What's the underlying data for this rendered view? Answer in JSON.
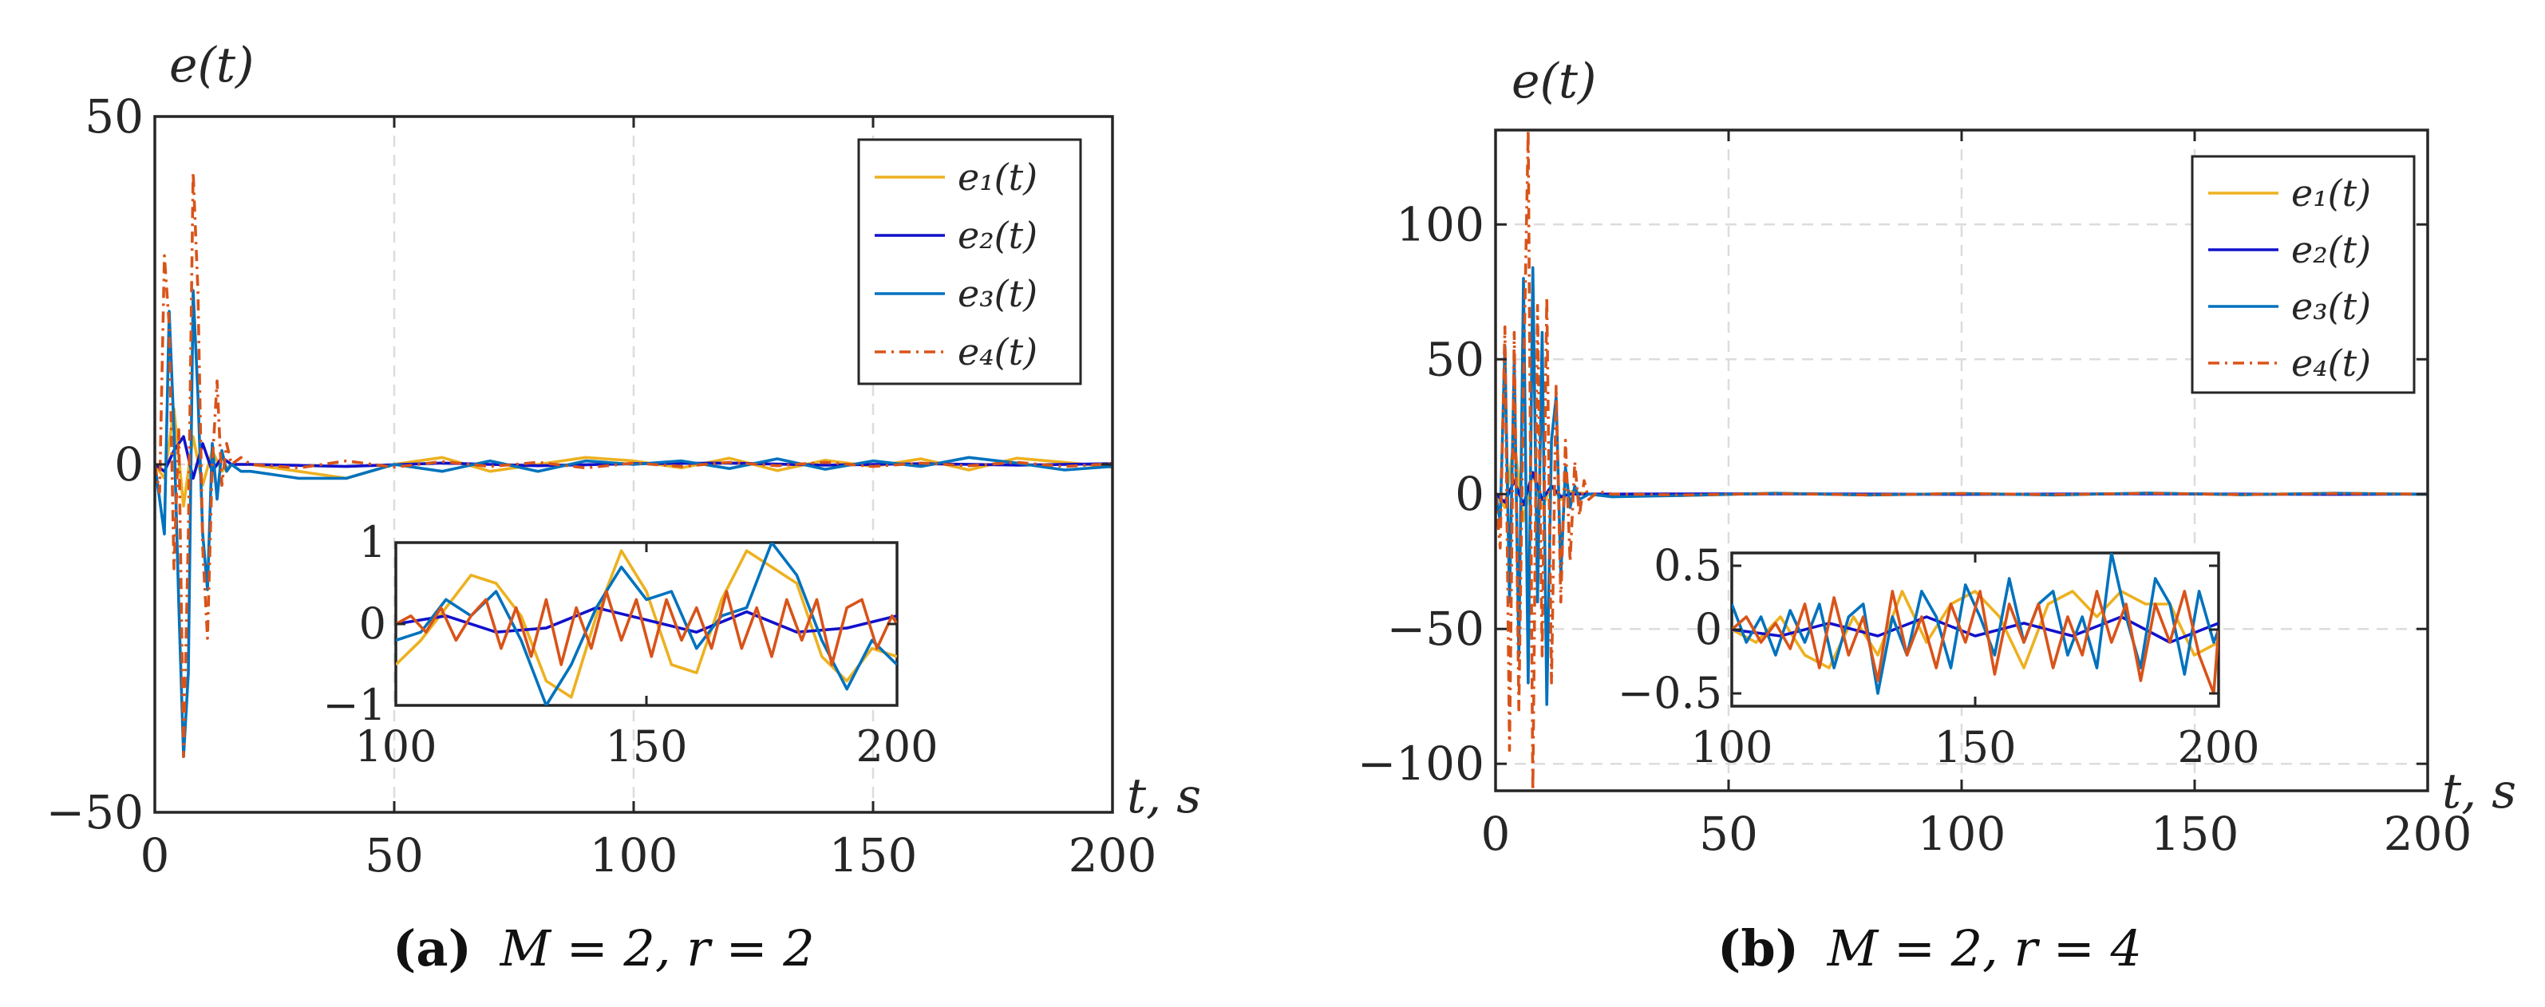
{
  "figure": {
    "panels": [
      {
        "label": "(a)",
        "caption_math": "M = 2, r = 2"
      },
      {
        "label": "(b)",
        "caption_math": "M = 2, r = 4"
      }
    ]
  },
  "colors": {
    "e1": "#EDB120",
    "e2": "#1111CC",
    "e3": "#0072BD",
    "e4": "#D95319"
  },
  "chart_data": [
    {
      "type": "line",
      "title": "",
      "ylabel": "e(t)",
      "xlabel": "t, s",
      "xlim": [
        0,
        200
      ],
      "ylim": [
        -50,
        50
      ],
      "xticks": [
        0,
        50,
        100,
        150,
        200
      ],
      "yticks": [
        -50,
        0,
        50
      ],
      "xtick_labels": [
        "0",
        "50",
        "100",
        "150",
        "200"
      ],
      "ytick_labels": [
        "−50",
        "0",
        "50"
      ],
      "grid": true,
      "legend_position": "top-right",
      "series": [
        {
          "name": "e1(t)",
          "legend": "e₁(t)",
          "style": "solid",
          "x": [
            0,
            2,
            4,
            6,
            8,
            10,
            12,
            14,
            16,
            20,
            30,
            40,
            50,
            60,
            70,
            80,
            90,
            100,
            110,
            120,
            130,
            140,
            150,
            160,
            170,
            180,
            190,
            200
          ],
          "values": [
            0,
            -2,
            8,
            -6,
            4,
            -3,
            2,
            -1,
            0,
            0,
            -1,
            -2,
            0,
            1,
            -1,
            0,
            1,
            0.5,
            -0.5,
            0.9,
            -0.9,
            0.6,
            -0.3,
            0.8,
            -0.8,
            0.9,
            0.3,
            -0.4
          ]
        },
        {
          "name": "e2(t)",
          "legend": "e₂(t)",
          "style": "solid",
          "x": [
            0,
            2,
            4,
            6,
            8,
            10,
            12,
            14,
            16,
            20,
            40,
            60,
            80,
            100,
            120,
            140,
            160,
            180,
            200
          ],
          "values": [
            0,
            -1,
            2,
            4,
            -2,
            3,
            -1,
            1,
            0,
            0,
            -0.3,
            0.2,
            -0.2,
            0.1,
            0.2,
            -0.1,
            0.1,
            -0.1,
            0.1
          ]
        },
        {
          "name": "e3(t)",
          "legend": "e₃(t)",
          "style": "solid",
          "x": [
            0,
            1,
            2,
            3,
            4,
            5,
            6,
            7,
            8,
            9,
            10,
            11,
            12,
            13,
            14,
            15,
            16,
            18,
            20,
            30,
            40,
            50,
            60,
            70,
            80,
            90,
            100,
            110,
            120,
            130,
            140,
            150,
            160,
            170,
            180,
            190,
            200
          ],
          "values": [
            0,
            -5,
            -10,
            22,
            5,
            -20,
            -42,
            -30,
            25,
            10,
            -10,
            -18,
            3,
            -5,
            2,
            -1,
            0,
            -1,
            -1,
            -2,
            -2,
            0,
            -1,
            0.5,
            -1,
            0.5,
            0,
            0.5,
            -0.6,
            0.8,
            -0.7,
            0.5,
            -0.3,
            1,
            0.2,
            -0.8,
            -0.3
          ]
        },
        {
          "name": "e4(t)",
          "legend": "e₄(t)",
          "style": "dashdot",
          "x": [
            0,
            1,
            2,
            3,
            4,
            5,
            6,
            7,
            8,
            9,
            10,
            11,
            12,
            13,
            14,
            15,
            16,
            18,
            20,
            30,
            40,
            50,
            60,
            70,
            80,
            90,
            100,
            110,
            120,
            130,
            140,
            150,
            160,
            170,
            180,
            190,
            200
          ],
          "values": [
            0,
            -4,
            30,
            20,
            -15,
            5,
            -42,
            -10,
            42,
            25,
            -12,
            -25,
            0,
            12,
            -3,
            3,
            0,
            1,
            0,
            -0.5,
            0.5,
            -0.4,
            0.4,
            -0.3,
            0.3,
            -0.5,
            0.2,
            -0.3,
            0.3,
            -0.2,
            0.3,
            -0.3,
            0.2,
            -0.2,
            0.3,
            -0.3,
            0.1
          ]
        }
      ],
      "inset": {
        "xlim": [
          100,
          200
        ],
        "ylim": [
          -1,
          1
        ],
        "xticks": [
          100,
          150,
          200
        ],
        "yticks": [
          -1,
          0,
          1
        ],
        "xtick_labels": [
          "100",
          "150",
          "200"
        ],
        "ytick_labels": [
          "−1",
          "0",
          "1"
        ],
        "series": [
          {
            "name": "e1(t)",
            "x": [
              100,
              105,
              110,
              115,
              120,
              125,
              130,
              135,
              140,
              145,
              150,
              155,
              160,
              165,
              170,
              175,
              180,
              185,
              190,
              195,
              200
            ],
            "values": [
              -0.5,
              -0.2,
              0.2,
              0.6,
              0.5,
              0.1,
              -0.7,
              -0.9,
              0.1,
              0.9,
              0.4,
              -0.5,
              -0.6,
              0.3,
              0.9,
              0.7,
              0.5,
              -0.4,
              -0.7,
              -0.3,
              -0.4
            ]
          },
          {
            "name": "e2(t)",
            "x": [
              100,
              110,
              120,
              130,
              140,
              150,
              160,
              170,
              180,
              190,
              200
            ],
            "values": [
              0,
              0.1,
              -0.1,
              -0.05,
              0.2,
              0.05,
              -0.1,
              0.15,
              -0.1,
              -0.05,
              0.1
            ]
          },
          {
            "name": "e3(t)",
            "x": [
              100,
              105,
              110,
              115,
              120,
              125,
              130,
              135,
              140,
              145,
              150,
              155,
              160,
              165,
              170,
              175,
              180,
              185,
              190,
              195,
              200
            ],
            "values": [
              -0.2,
              -0.1,
              0.3,
              0.1,
              0.4,
              -0.2,
              -1,
              -0.5,
              0.2,
              0.7,
              0.3,
              0.4,
              -0.3,
              0.1,
              0.2,
              1,
              0.6,
              -0.2,
              -0.8,
              -0.2,
              -0.5
            ]
          },
          {
            "name": "e4(t)",
            "x": [
              100,
              103,
              106,
              109,
              112,
              115,
              118,
              121,
              124,
              127,
              130,
              133,
              136,
              139,
              142,
              145,
              148,
              151,
              154,
              157,
              160,
              163,
              166,
              169,
              172,
              175,
              178,
              181,
              184,
              187,
              190,
              193,
              196,
              199,
              200
            ],
            "values": [
              0,
              0.1,
              -0.1,
              0.2,
              -0.2,
              0.1,
              0.3,
              -0.3,
              0.2,
              -0.4,
              0.3,
              -0.5,
              0.2,
              -0.3,
              0.4,
              -0.2,
              0.3,
              -0.4,
              0.3,
              -0.2,
              0.2,
              -0.3,
              0.4,
              -0.3,
              0.2,
              -0.4,
              0.3,
              -0.2,
              0.3,
              -0.5,
              0.2,
              0.3,
              -0.3,
              0.1,
              0
            ]
          }
        ]
      }
    },
    {
      "type": "line",
      "title": "",
      "ylabel": "e(t)",
      "xlabel": "t, s",
      "xlim": [
        0,
        200
      ],
      "ylim": [
        -110,
        135
      ],
      "xticks": [
        0,
        50,
        100,
        150,
        200
      ],
      "yticks": [
        -100,
        -50,
        0,
        50,
        100
      ],
      "xtick_labels": [
        "0",
        "50",
        "100",
        "150",
        "200"
      ],
      "ytick_labels": [
        "−100",
        "−50",
        "0",
        "50",
        "100"
      ],
      "grid": true,
      "legend_position": "top-right",
      "series": [
        {
          "name": "e1(t)",
          "legend": "e₁(t)",
          "style": "solid",
          "x": [
            0,
            2,
            4,
            6,
            8,
            10,
            12,
            14,
            16,
            20,
            40,
            60,
            80,
            100,
            120,
            140,
            160,
            180,
            200
          ],
          "values": [
            0,
            -5,
            20,
            -10,
            8,
            -5,
            3,
            -2,
            1,
            0,
            -0.5,
            0.3,
            -0.3,
            0.2,
            -0.2,
            0.3,
            -0.2,
            0.3,
            -0.1
          ]
        },
        {
          "name": "e2(t)",
          "legend": "e₂(t)",
          "style": "solid",
          "x": [
            0,
            2,
            4,
            6,
            8,
            10,
            12,
            14,
            16,
            20,
            60,
            100,
            140,
            180,
            200
          ],
          "values": [
            0,
            -3,
            5,
            -4,
            8,
            -2,
            3,
            -1,
            0,
            0,
            0.1,
            -0.1,
            0.1,
            -0.1,
            0
          ]
        },
        {
          "name": "e3(t)",
          "legend": "e₃(t)",
          "style": "solid",
          "x": [
            0,
            1,
            2,
            3,
            4,
            5,
            6,
            7,
            8,
            9,
            10,
            11,
            12,
            13,
            14,
            15,
            16,
            17,
            18,
            20,
            25,
            40,
            60,
            80,
            100,
            120,
            140,
            160,
            180,
            200
          ],
          "values": [
            0,
            -10,
            55,
            -40,
            50,
            -60,
            80,
            -70,
            84,
            -40,
            60,
            -78,
            20,
            36,
            -30,
            10,
            -5,
            3,
            -2,
            0,
            -1,
            -0.5,
            0.3,
            -0.3,
            0.2,
            -0.3,
            0.4,
            -0.2,
            0.3,
            -0.1
          ]
        },
        {
          "name": "e4(t)",
          "legend": "e₄(t)",
          "style": "dashdot",
          "x": [
            0,
            1,
            2,
            3,
            4,
            5,
            6,
            7,
            8,
            9,
            10,
            11,
            12,
            13,
            14,
            15,
            16,
            17,
            18,
            19,
            20,
            22,
            25,
            40,
            60,
            80,
            100,
            120,
            140,
            160,
            180,
            200
          ],
          "values": [
            0,
            -20,
            62,
            -95,
            60,
            -80,
            40,
            135,
            -110,
            70,
            -60,
            73,
            -70,
            40,
            -40,
            20,
            -25,
            12,
            -8,
            5,
            -2,
            1,
            0,
            -0.3,
            0.2,
            -0.3,
            0.2,
            -0.2,
            0.3,
            -0.2,
            0.2,
            0
          ]
        }
      ],
      "inset": {
        "xlim": [
          100,
          200
        ],
        "ylim": [
          -0.6,
          0.6
        ],
        "xticks": [
          100,
          150,
          200
        ],
        "yticks": [
          -0.5,
          0,
          0.5
        ],
        "xtick_labels": [
          "100",
          "150",
          "200"
        ],
        "ytick_labels": [
          "−0.5",
          "0",
          "0.5"
        ],
        "series": [
          {
            "name": "e1(t)",
            "x": [
              100,
              105,
              110,
              115,
              120,
              125,
              130,
              135,
              140,
              145,
              150,
              155,
              160,
              165,
              170,
              175,
              180,
              185,
              190,
              195,
              200
            ],
            "values": [
              0,
              -0.1,
              0.1,
              -0.2,
              -0.3,
              0.1,
              -0.2,
              0.3,
              -0.1,
              0.2,
              0.3,
              0.1,
              -0.3,
              0.2,
              0.3,
              0.1,
              0.3,
              0.2,
              0.2,
              -0.2,
              -0.1
            ]
          },
          {
            "name": "e2(t)",
            "x": [
              100,
              110,
              120,
              130,
              140,
              150,
              160,
              170,
              180,
              190,
              200
            ],
            "values": [
              0,
              -0.05,
              0.05,
              -0.05,
              0.1,
              -0.05,
              0.05,
              -0.05,
              0.1,
              -0.1,
              0.05
            ]
          },
          {
            "name": "e3(t)",
            "x": [
              100,
              103,
              106,
              109,
              112,
              115,
              118,
              121,
              124,
              127,
              130,
              133,
              136,
              139,
              142,
              145,
              148,
              151,
              154,
              157,
              160,
              163,
              166,
              169,
              172,
              175,
              178,
              181,
              184,
              187,
              190,
              193,
              196,
              199,
              200
            ],
            "values": [
              0.2,
              -0.1,
              0.1,
              -0.2,
              0.15,
              -0.1,
              0.2,
              -0.3,
              0.1,
              0.2,
              -0.5,
              0.1,
              -0.2,
              0.3,
              0.1,
              -0.3,
              0.35,
              0.1,
              -0.2,
              0.4,
              -0.1,
              0.2,
              0.3,
              -0.2,
              0.1,
              -0.3,
              0.6,
              0.1,
              -0.3,
              0.4,
              0.2,
              -0.35,
              0.3,
              -0.1,
              0
            ]
          },
          {
            "name": "e4(t)",
            "x": [
              100,
              103,
              106,
              109,
              112,
              115,
              118,
              121,
              124,
              127,
              130,
              133,
              136,
              139,
              142,
              145,
              148,
              151,
              154,
              157,
              160,
              163,
              166,
              169,
              172,
              175,
              178,
              181,
              184,
              187,
              190,
              193,
              196,
              199,
              200
            ],
            "values": [
              0,
              0.1,
              -0.1,
              0.05,
              -0.15,
              0.2,
              -0.3,
              0.25,
              -0.2,
              0.1,
              -0.4,
              0.3,
              -0.2,
              0.1,
              -0.3,
              0.2,
              -0.1,
              0.3,
              -0.35,
              0.2,
              -0.1,
              0.2,
              -0.3,
              0.1,
              -0.2,
              0.3,
              -0.1,
              0.2,
              -0.4,
              0.2,
              -0.1,
              0.3,
              -0.2,
              -0.5,
              0
            ]
          }
        ]
      }
    }
  ]
}
